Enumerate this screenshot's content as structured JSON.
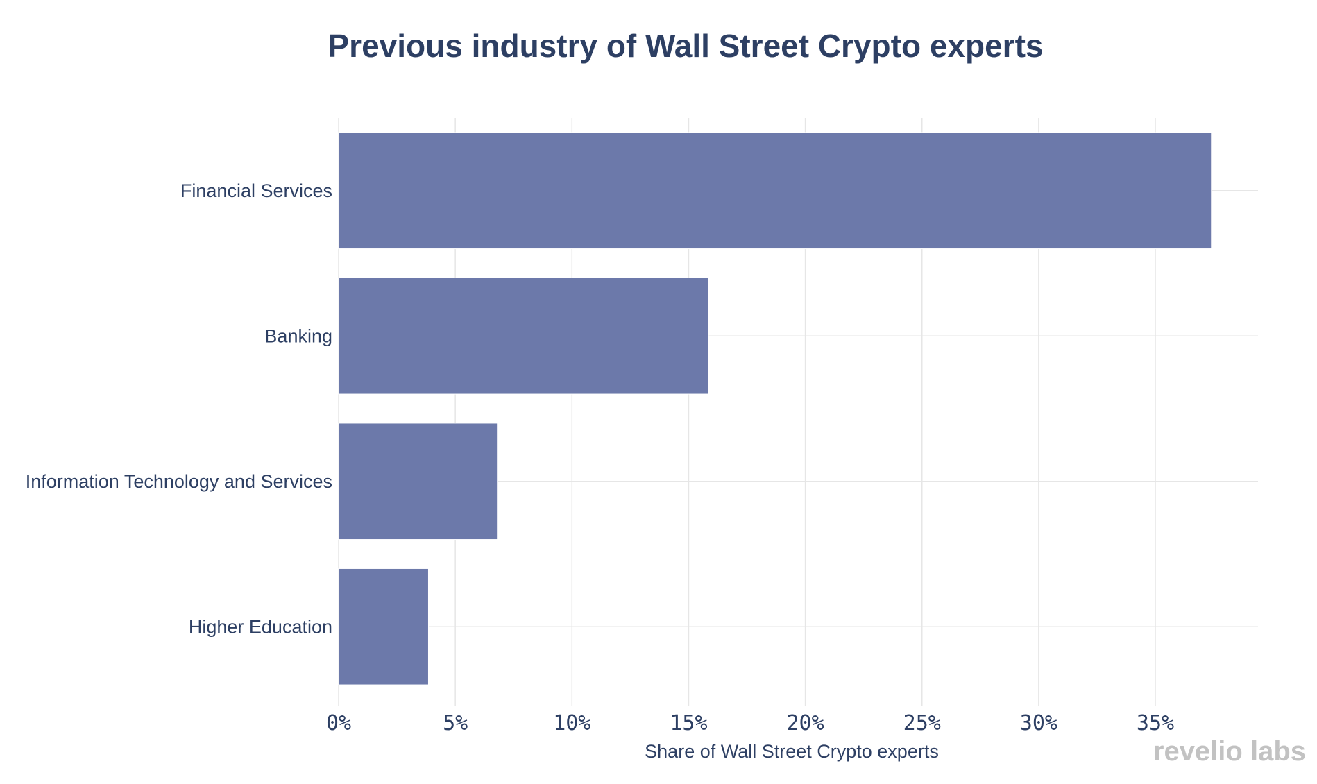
{
  "chart_data": {
    "type": "bar",
    "orientation": "horizontal",
    "title": "Previous industry of Wall Street Crypto experts",
    "xlabel": "Share of Wall Street Crypto experts",
    "ylabel": "",
    "categories": [
      "Financial Services",
      "Banking",
      "Information Technology and Services",
      "Higher Education"
    ],
    "values": [
      37.4,
      15.85,
      6.8,
      3.85
    ],
    "xlim": [
      0,
      39.4
    ],
    "x_ticks": [
      0,
      5,
      10,
      15,
      20,
      25,
      30,
      35
    ],
    "x_tick_labels": [
      "0%",
      "5%",
      "10%",
      "15%",
      "20%",
      "25%",
      "30%",
      "35%"
    ],
    "bar_color": "#6c79aa",
    "grid": true,
    "legend": "none"
  },
  "branding": {
    "logo_text": "revelio labs"
  }
}
